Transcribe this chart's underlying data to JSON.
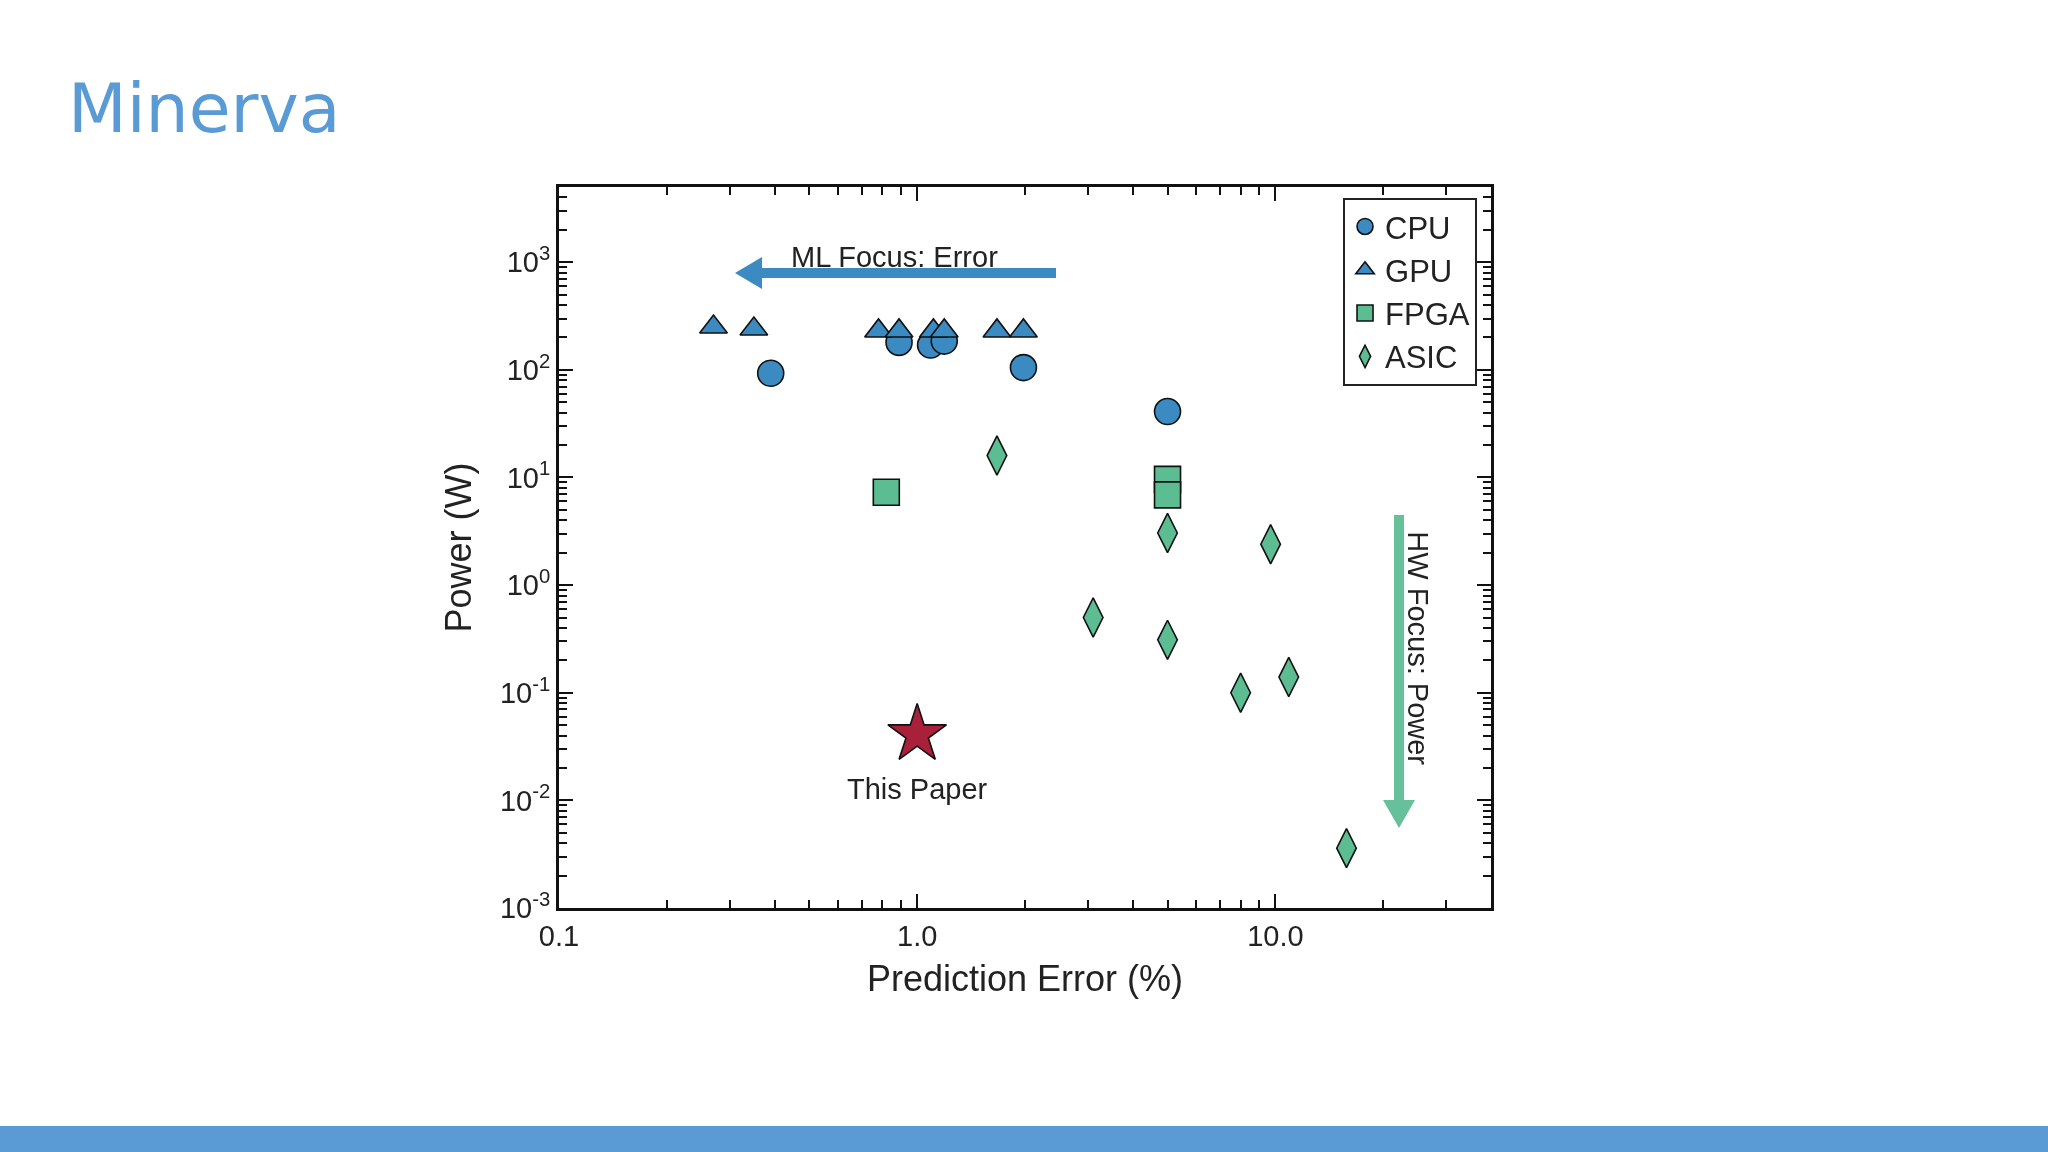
{
  "chart_data": {
    "type": "scatter",
    "title": "Minerva",
    "xlabel": "Prediction Error (%)",
    "ylabel": "Power (W)",
    "log": "xy",
    "xlim": [
      0.1,
      40
    ],
    "ylim": [
      0.001,
      5000
    ],
    "xticks": [
      {
        "value": 0.1,
        "label": "0.1"
      },
      {
        "value": 1,
        "label": "1.0"
      },
      {
        "value": 10,
        "label": "10.0"
      }
    ],
    "yticks": [
      {
        "value": 0.001,
        "label": "10$^{-3}$"
      },
      {
        "value": 0.01,
        "label": "10$^{-2}$"
      },
      {
        "value": 0.1,
        "label": "10$^{-1}$"
      },
      {
        "value": 1,
        "label": "10$^{0}$"
      },
      {
        "value": 10,
        "label": "10$^{1}$"
      },
      {
        "value": 100,
        "label": "10$^{2}$"
      },
      {
        "value": 1000,
        "label": "10$^{3}$"
      }
    ],
    "grid": false,
    "legend": "top right",
    "series": [
      {
        "name": "CPU",
        "color": "#3b8bc2",
        "marker": "circle",
        "x": [
          0.39,
          0.89,
          1.09,
          1.19,
          1.98,
          5.0
        ],
        "values": [
          93,
          180,
          170,
          185,
          105,
          41
        ]
      },
      {
        "name": "GPU",
        "color": "#3b8bc2",
        "marker": "triangle",
        "x": [
          0.27,
          0.35,
          0.78,
          0.89,
          1.11,
          1.19,
          1.67,
          1.98
        ],
        "values": [
          250,
          240,
          230,
          230,
          230,
          230,
          230,
          230
        ]
      },
      {
        "name": "FPGA",
        "color": "#5cbd92",
        "marker": "square",
        "x": [
          0.82,
          5.0,
          5.0
        ],
        "values": [
          7.3,
          9.6,
          6.9
        ]
      },
      {
        "name": "ASIC",
        "color": "#5cbd92",
        "marker": "diamond",
        "x": [
          1.67,
          5.0,
          9.7,
          3.1,
          5.0,
          8.0,
          10.9,
          15.8
        ],
        "values": [
          16,
          3.05,
          2.4,
          0.5,
          0.31,
          0.1,
          0.14,
          0.0036
        ]
      },
      {
        "color": "#a8203a",
        "marker": "star",
        "x": [
          1.0
        ],
        "values": [
          0.041
        ]
      }
    ],
    "annotations": [
      "ML Focus: Error",
      "HW Focus: Power",
      {
        "text": "This Paper",
        "x": 1.0,
        "y": 0.041
      }
    ]
  }
}
